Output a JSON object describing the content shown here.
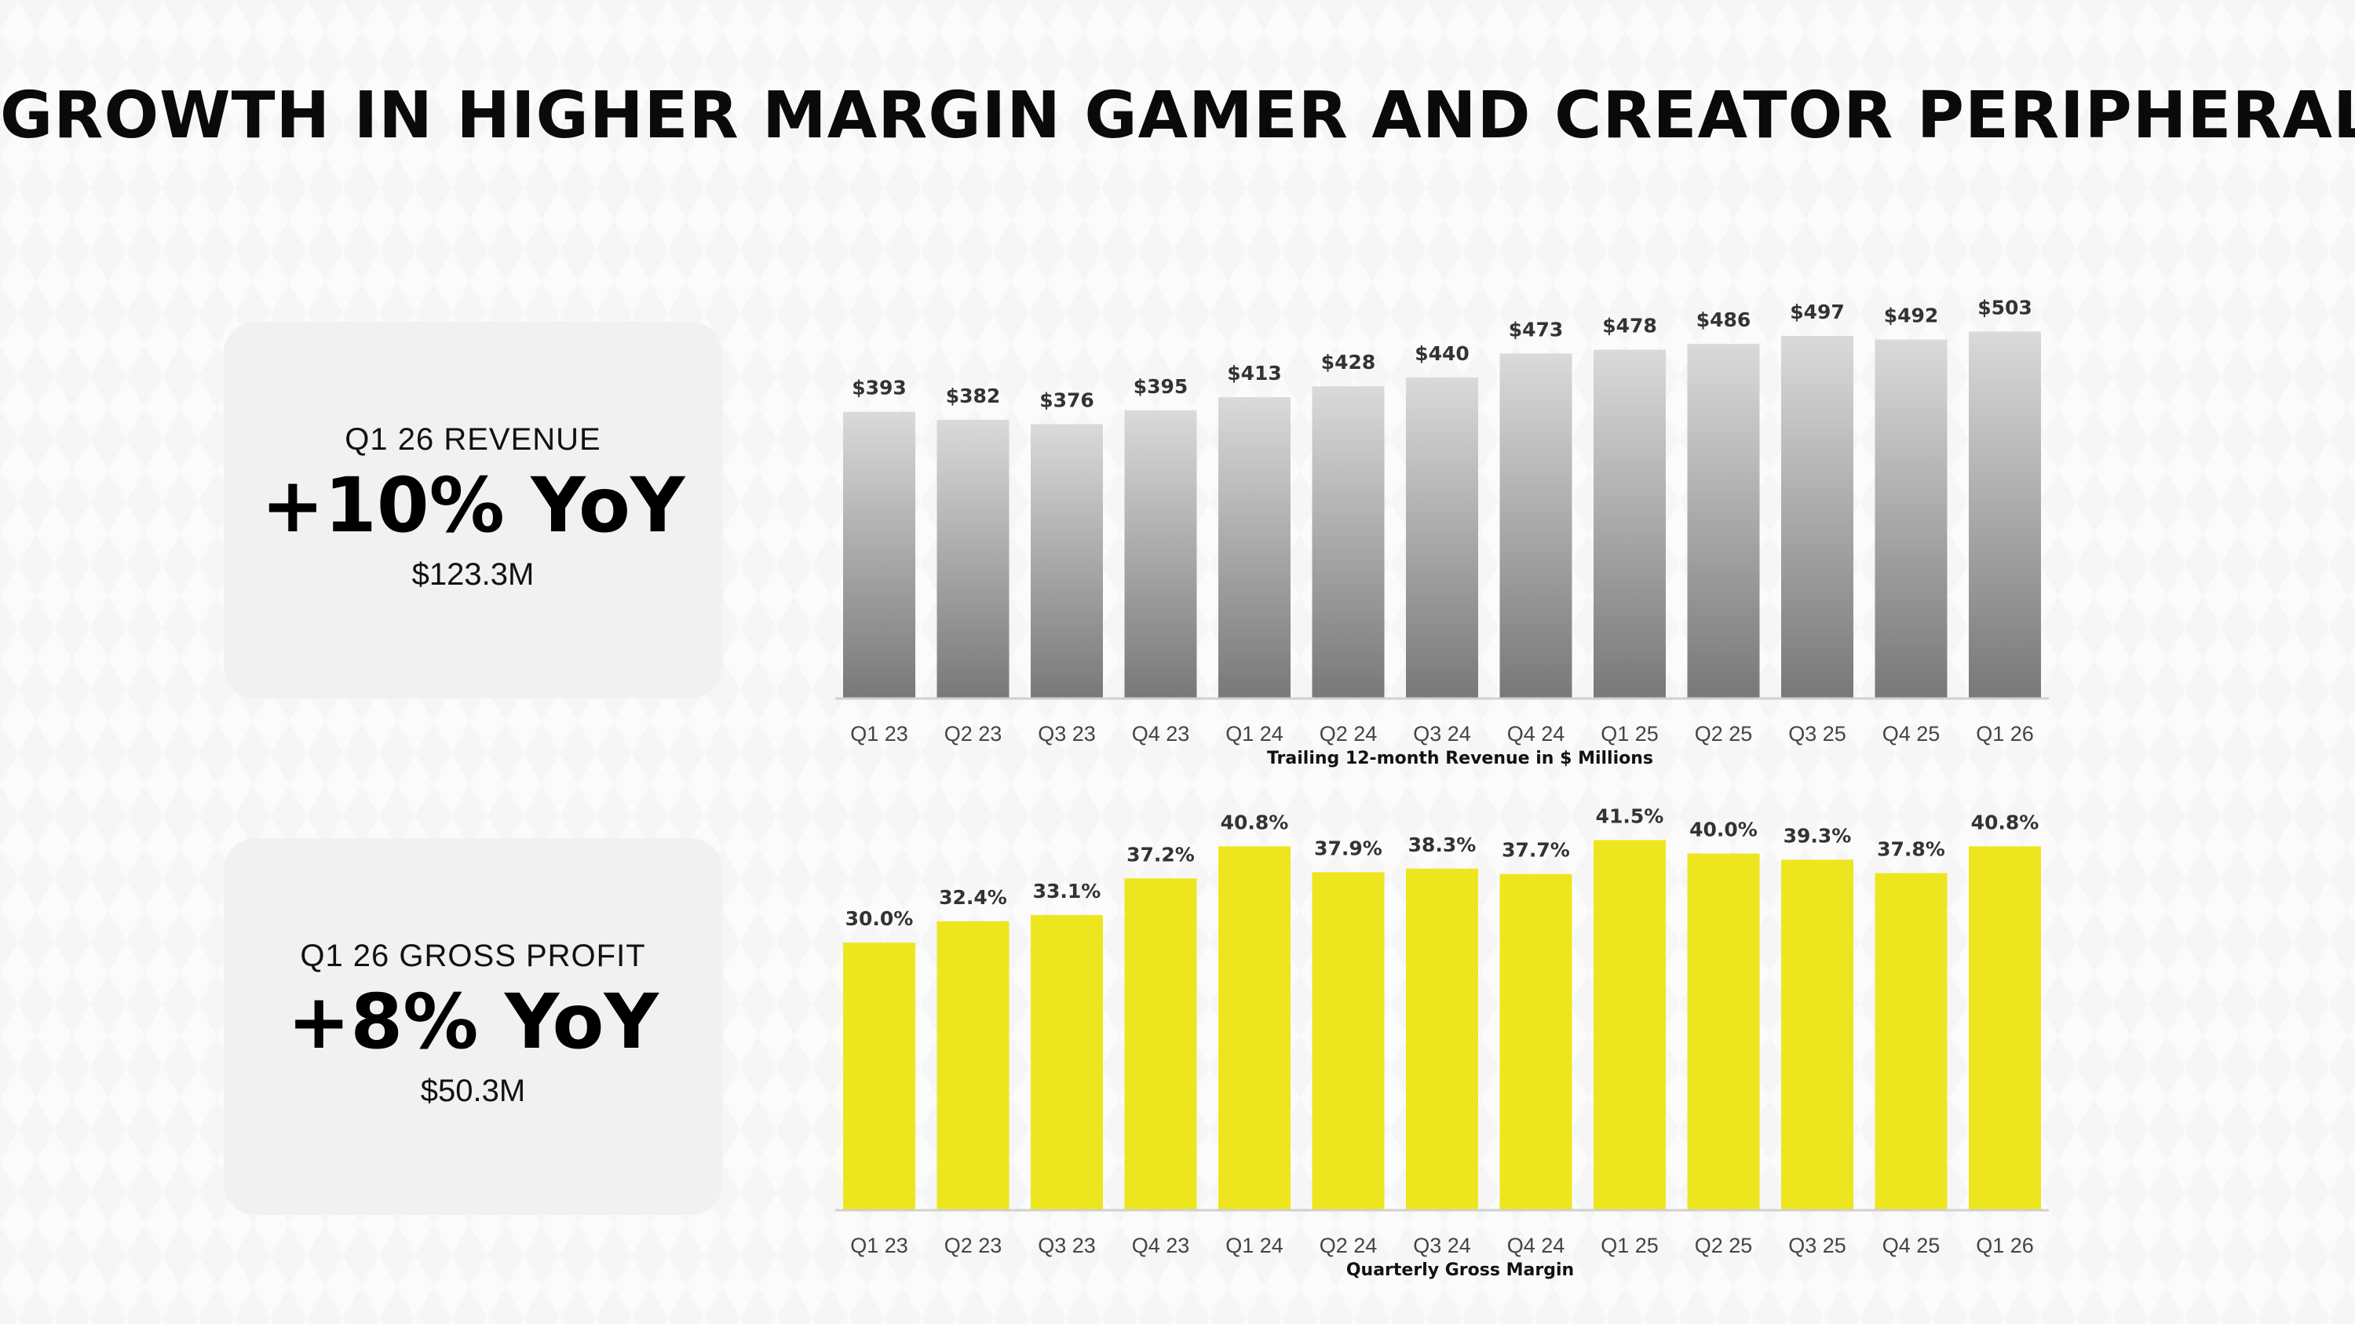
{
  "title": "GROWTH IN HIGHER MARGIN GAMER AND CREATOR PERIPHERALS",
  "cards": {
    "revenue": {
      "label": "Q1 26 REVENUE",
      "value": "+10% YoY",
      "amount": "$123.3M"
    },
    "gross_profit": {
      "label": "Q1 26 GROSS PROFIT",
      "value": "+8% YoY",
      "amount": "$50.3M"
    }
  },
  "colors": {
    "revenue_bar_top": "#d9d9d9",
    "revenue_bar_bottom": "#7a7a7a",
    "margin_bar": "#ede61e",
    "card_bg": "#f1f1f1"
  },
  "chart_data": [
    {
      "type": "bar",
      "title": "",
      "xlabel": "Trailing 12-month Revenue in $ Millions",
      "ylabel": "",
      "categories": [
        "Q1 23",
        "Q2 23",
        "Q3 23",
        "Q4 23",
        "Q1 24",
        "Q2 24",
        "Q3 24",
        "Q4 24",
        "Q1 25",
        "Q2 25",
        "Q3 25",
        "Q4 25",
        "Q1 26"
      ],
      "values": [
        393,
        382,
        376,
        395,
        413,
        428,
        440,
        473,
        478,
        486,
        497,
        492,
        503
      ],
      "labels": [
        "$393",
        "$382",
        "$376",
        "$395",
        "$413",
        "$428",
        "$440",
        "$473",
        "$478",
        "$486",
        "$497",
        "$492",
        "$503"
      ],
      "ylim": [
        0,
        540
      ],
      "grid": false
    },
    {
      "type": "bar",
      "title": "",
      "xlabel": "Quarterly Gross Margin",
      "ylabel": "",
      "categories": [
        "Q1 23",
        "Q2 23",
        "Q3 23",
        "Q4 23",
        "Q1 24",
        "Q2 24",
        "Q3 24",
        "Q4 24",
        "Q1 25",
        "Q2 25",
        "Q3 25",
        "Q4 25",
        "Q1 26"
      ],
      "values": [
        30.0,
        32.4,
        33.1,
        37.2,
        40.8,
        37.9,
        38.3,
        37.7,
        41.5,
        40.0,
        39.3,
        37.8,
        40.8
      ],
      "labels": [
        "30.0%",
        "32.4%",
        "33.1%",
        "37.2%",
        "40.8%",
        "37.9%",
        "38.3%",
        "37.7%",
        "41.5%",
        "40.0%",
        "39.3%",
        "37.8%",
        "40.8%"
      ],
      "ylim": [
        0,
        44
      ],
      "grid": false
    }
  ]
}
